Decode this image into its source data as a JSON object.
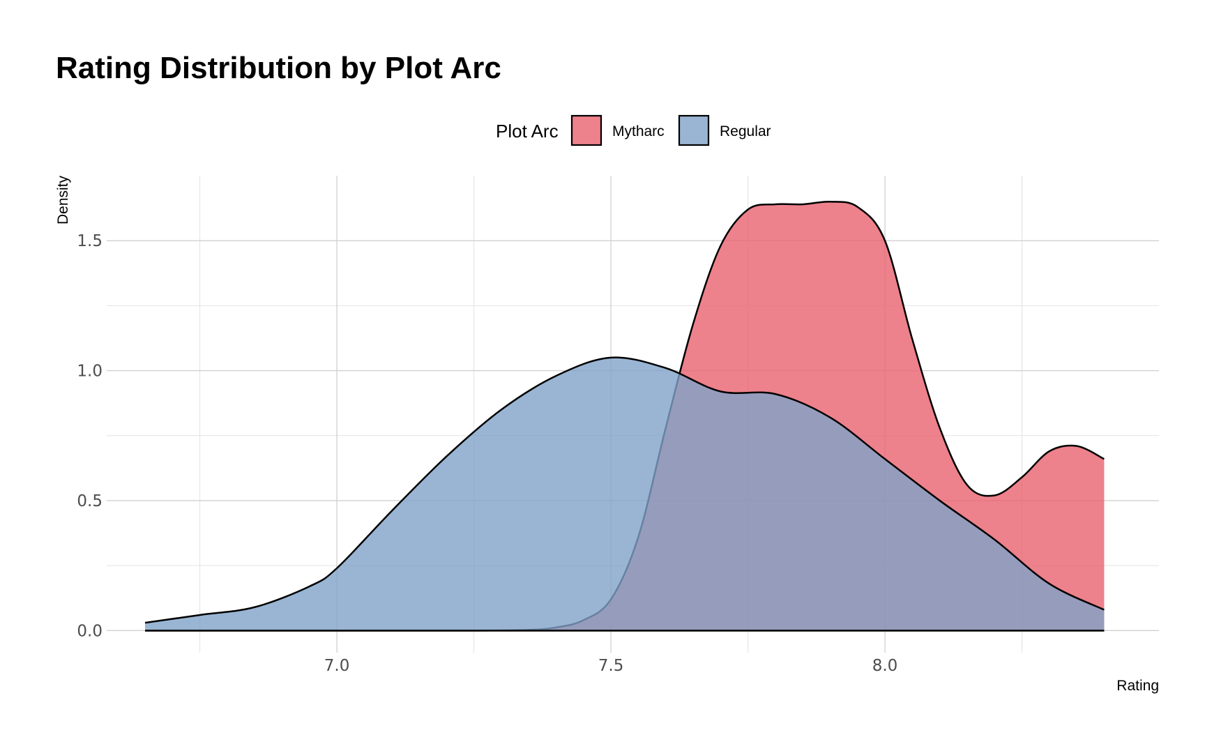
{
  "chart_data": {
    "type": "area",
    "subtype": "density",
    "title": "Rating Distribution by Plot Arc",
    "xlabel": "Rating",
    "ylabel": "Density",
    "xlim": [
      6.58,
      8.5
    ],
    "ylim": [
      -0.085,
      1.75
    ],
    "x_ticks": [
      7.0,
      7.5,
      8.0
    ],
    "x_tick_labels": [
      "7.0",
      "7.5",
      "8.0"
    ],
    "y_ticks": [
      0.0,
      0.5,
      1.0,
      1.5
    ],
    "y_tick_labels": [
      "0.0",
      "0.5",
      "1.0",
      "1.5"
    ],
    "grid": true,
    "legend": {
      "title": "Plot Arc",
      "position": "top"
    },
    "series": [
      {
        "name": "Mytharc",
        "color": "#e8616f",
        "opacity": 0.8,
        "x": [
          6.65,
          7.0,
          7.25,
          7.35,
          7.4,
          7.45,
          7.5,
          7.55,
          7.6,
          7.65,
          7.7,
          7.75,
          7.8,
          7.85,
          7.9,
          7.95,
          8.0,
          8.05,
          8.1,
          8.15,
          8.2,
          8.25,
          8.3,
          8.35,
          8.4
        ],
        "y": [
          0.0,
          0.0,
          0.0,
          0.003,
          0.012,
          0.04,
          0.12,
          0.36,
          0.78,
          1.18,
          1.48,
          1.62,
          1.64,
          1.64,
          1.65,
          1.63,
          1.5,
          1.12,
          0.78,
          0.56,
          0.52,
          0.59,
          0.69,
          0.71,
          0.66
        ]
      },
      {
        "name": "Regular",
        "color": "#7fa2c8",
        "opacity": 0.8,
        "x": [
          6.65,
          6.75,
          6.85,
          6.95,
          7.0,
          7.1,
          7.2,
          7.3,
          7.4,
          7.5,
          7.6,
          7.7,
          7.8,
          7.9,
          8.0,
          8.1,
          8.2,
          8.3,
          8.4
        ],
        "y": [
          0.03,
          0.06,
          0.09,
          0.17,
          0.24,
          0.46,
          0.67,
          0.85,
          0.98,
          1.05,
          1.01,
          0.92,
          0.91,
          0.82,
          0.66,
          0.5,
          0.35,
          0.18,
          0.08
        ]
      }
    ]
  }
}
